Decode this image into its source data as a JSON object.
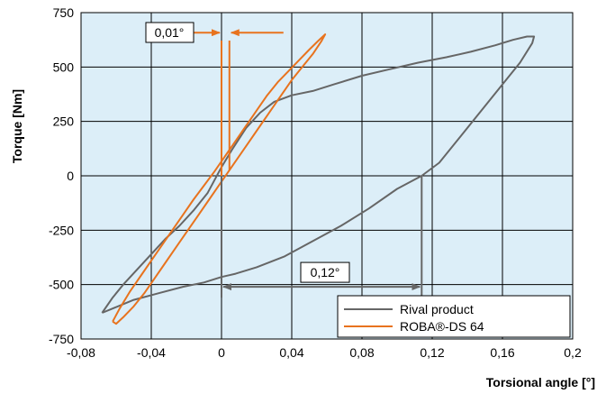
{
  "chart_data": {
    "type": "line",
    "title": "",
    "xlabel": "Torsional angle [°]",
    "ylabel": "Torque [Nm]",
    "xlim": [
      -0.08,
      0.2
    ],
    "ylim": [
      -750,
      750
    ],
    "xticks": [
      -0.08,
      -0.04,
      0,
      0.04,
      0.08,
      0.12,
      0.16,
      0.2
    ],
    "yticks": [
      -750,
      -500,
      -250,
      0,
      250,
      500,
      750
    ],
    "xtick_labels": [
      "-0,08",
      "-0,04",
      "0",
      "0,04",
      "0,08",
      "0,12",
      "0,16",
      "0,2"
    ],
    "ytick_labels": [
      "-750",
      "-500",
      "-250",
      "0",
      "250",
      "500",
      "750"
    ],
    "grid": true,
    "background_color": "#dceef8",
    "legend_position": "bottom-right",
    "series": [
      {
        "name": "Rival product",
        "color": "#666666",
        "x": [
          -0.068,
          -0.062,
          -0.056,
          -0.048,
          -0.04,
          -0.032,
          -0.024,
          -0.016,
          -0.008,
          -0.004,
          0.0,
          0.006,
          0.014,
          0.022,
          0.03,
          0.04,
          0.052,
          0.064,
          0.08,
          0.096,
          0.112,
          0.128,
          0.142,
          0.156,
          0.166,
          0.174,
          0.178,
          0.177,
          0.17,
          0.16,
          0.148,
          0.136,
          0.124,
          0.114,
          0.1,
          0.084,
          0.068,
          0.052,
          0.036,
          0.02,
          0.008,
          0.0,
          -0.01,
          -0.022,
          -0.036,
          -0.05,
          -0.062,
          -0.068
        ],
        "y": [
          -630,
          -560,
          -500,
          -430,
          -360,
          -290,
          -230,
          -160,
          -80,
          -20,
          40,
          120,
          220,
          290,
          340,
          370,
          390,
          420,
          460,
          490,
          520,
          545,
          570,
          600,
          625,
          640,
          640,
          610,
          520,
          420,
          300,
          180,
          60,
          0,
          -60,
          -150,
          -230,
          -300,
          -370,
          -420,
          -450,
          -465,
          -490,
          -510,
          -540,
          -570,
          -610,
          -630
        ]
      },
      {
        "name": "ROBA®-DS 64",
        "color": "#e8731e",
        "x": [
          -0.062,
          -0.058,
          -0.052,
          -0.046,
          -0.04,
          -0.034,
          -0.028,
          -0.022,
          -0.016,
          -0.01,
          -0.004,
          0.002,
          0.008,
          0.014,
          0.02,
          0.026,
          0.032,
          0.038,
          0.044,
          0.05,
          0.055,
          0.059,
          0.057,
          0.052,
          0.046,
          0.04,
          0.034,
          0.028,
          0.022,
          0.016,
          0.01,
          0.004,
          -0.002,
          -0.008,
          -0.014,
          -0.02,
          -0.026,
          -0.032,
          -0.038,
          -0.044,
          -0.05,
          -0.056,
          -0.06,
          -0.062
        ],
        "y": [
          -670,
          -610,
          -530,
          -460,
          -390,
          -320,
          -250,
          -180,
          -110,
          -45,
          20,
          90,
          160,
          230,
          300,
          370,
          430,
          480,
          530,
          580,
          620,
          650,
          620,
          560,
          500,
          440,
          370,
          300,
          230,
          160,
          90,
          20,
          -50,
          -120,
          -190,
          -260,
          -330,
          -400,
          -470,
          -540,
          -600,
          -650,
          -680,
          -670
        ]
      }
    ],
    "annotations": [
      {
        "label": "0,01°",
        "x1": 0.0,
        "x2": 0.0045,
        "y": 600
      },
      {
        "label": "0,12°",
        "x1": 0.0,
        "x2": 0.114,
        "y": -510
      }
    ]
  }
}
